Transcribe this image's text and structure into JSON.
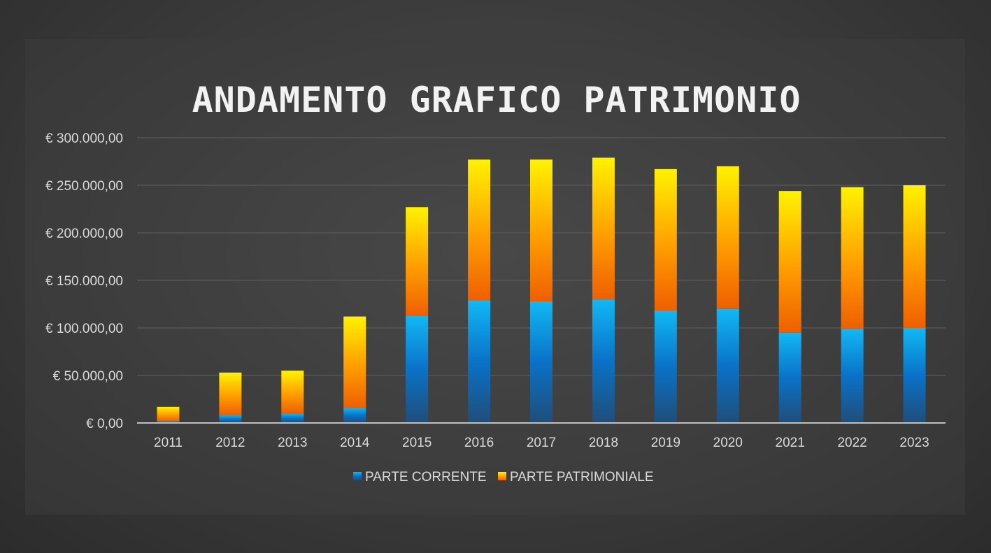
{
  "chart_data": {
    "type": "bar",
    "stacked": true,
    "title": "ANDAMENTO GRAFICO PATRIMONIO",
    "categories": [
      "2011",
      "2012",
      "2013",
      "2014",
      "2015",
      "2016",
      "2017",
      "2018",
      "2019",
      "2020",
      "2021",
      "2022",
      "2023"
    ],
    "series": [
      {
        "name": "PARTE CORRENTE",
        "values": [
          2000,
          8000,
          10000,
          16000,
          113000,
          129000,
          128000,
          130000,
          118000,
          120000,
          95000,
          99000,
          100000
        ]
      },
      {
        "name": "PARTE PATRIMONIALE",
        "values": [
          15000,
          45000,
          45000,
          96000,
          114000,
          148000,
          149000,
          149000,
          149000,
          150000,
          149000,
          149000,
          150000
        ]
      }
    ],
    "ylim": [
      0,
      300000
    ],
    "yticks": [
      0,
      50000,
      100000,
      150000,
      200000,
      250000,
      300000
    ],
    "ytick_labels": [
      "€ 0,00",
      "€ 50.000,00",
      "€ 100.000,00",
      "€ 150.000,00",
      "€ 200.000,00",
      "€ 250.000,00",
      "€ 300.000,00"
    ],
    "grid": true,
    "legend_position": "bottom",
    "colors": {
      "corrente_top": "#11b8f5",
      "corrente_mid": "#0a72c8",
      "corrente_bottom": "#1f4e79",
      "patrimoniale_top": "#fff200",
      "patrimoniale_mid": "#ff9d00",
      "patrimoniale_bottom": "#ef5f00",
      "grid": "#5a5a5a",
      "axis": "#bfbfbf"
    }
  }
}
